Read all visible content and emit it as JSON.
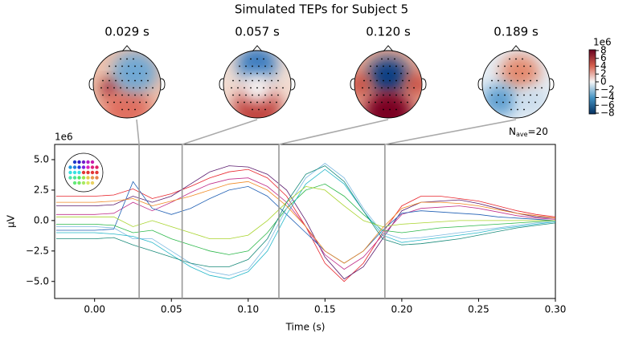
{
  "chart_data": {
    "type": "line",
    "title": "Simulated TEPs for Subject 5",
    "xlabel": "Time (s)",
    "ylabel": "µV",
    "y_offset_label": "1e6",
    "nave": {
      "symbol": "N",
      "subscript": "ave",
      "text": "=20"
    },
    "xlim": [
      -0.026,
      0.3
    ],
    "ylim": [
      -6.4,
      6.25
    ],
    "xticks": [
      {
        "value": 0,
        "label": "0.00"
      },
      {
        "value": 0.05,
        "label": "0.05"
      },
      {
        "value": 0.1,
        "label": "0.10"
      },
      {
        "value": 0.15,
        "label": "0.15"
      },
      {
        "value": 0.2,
        "label": "0.20"
      },
      {
        "value": 0.25,
        "label": "0.25"
      },
      {
        "value": 0.3,
        "label": "0.30"
      }
    ],
    "yticks": [
      {
        "value": -5,
        "label": "−5.0"
      },
      {
        "value": -2.5,
        "label": "−2.5"
      },
      {
        "value": 0,
        "label": "0.0"
      },
      {
        "value": 2.5,
        "label": "2.5"
      },
      {
        "value": 5,
        "label": "5.0"
      }
    ],
    "topomaps": [
      {
        "title": "0.029 s",
        "time": 0.029
      },
      {
        "title": "0.057 s",
        "time": 0.057
      },
      {
        "title": "0.120 s",
        "time": 0.12
      },
      {
        "title": "0.189 s",
        "time": 0.189
      }
    ],
    "colorbar": {
      "offset_label": "1e6",
      "lim": [
        -8.2,
        8.2
      ],
      "ticks": [
        8,
        6,
        4,
        2,
        0,
        {
          "value": -2,
          "label": "−2"
        },
        {
          "value": -4,
          "label": "−4"
        },
        {
          "value": -6,
          "label": "−6"
        },
        {
          "value": -8,
          "label": "−8"
        }
      ]
    },
    "x": [
      -0.025,
      -0.0125,
      0,
      0.0125,
      0.025,
      0.0375,
      0.05,
      0.0625,
      0.075,
      0.0875,
      0.1,
      0.1125,
      0.125,
      0.1375,
      0.15,
      0.1625,
      0.175,
      0.1875,
      0.2,
      0.2125,
      0.225,
      0.2375,
      0.25,
      0.2625,
      0.275,
      0.2875,
      0.3
    ],
    "series": [
      {
        "color": "#e8242c",
        "values": [
          2.0,
          2.0,
          2.0,
          2.1,
          2.6,
          1.8,
          2.2,
          2.8,
          3.5,
          4.0,
          4.2,
          3.5,
          2.0,
          -0.5,
          -3.5,
          -5.0,
          -3.5,
          -1.0,
          1.2,
          2.0,
          2.0,
          1.8,
          1.6,
          1.2,
          0.8,
          0.5,
          0.3
        ]
      },
      {
        "color": "#5a1a6e",
        "values": [
          1.2,
          1.2,
          1.2,
          1.3,
          2.0,
          1.5,
          2.0,
          3.0,
          4.0,
          4.5,
          4.4,
          3.8,
          2.5,
          0,
          -3.0,
          -4.8,
          -3.8,
          -1.5,
          0.8,
          1.5,
          1.6,
          1.7,
          1.4,
          1.0,
          0.6,
          0.3,
          0.2
        ]
      },
      {
        "color": "#c0308c",
        "values": [
          0.5,
          0.5,
          0.5,
          0.6,
          1.5,
          0.8,
          1.5,
          2.3,
          3.0,
          3.4,
          3.5,
          2.8,
          1.5,
          -0.5,
          -2.8,
          -4.0,
          -3.0,
          -1.2,
          0.5,
          1.0,
          1.1,
          1.2,
          1.0,
          0.7,
          0.4,
          0.2,
          0.1
        ]
      },
      {
        "color": "#1f5fb4",
        "values": [
          -0.8,
          -0.8,
          -0.8,
          -0.7,
          3.2,
          1.0,
          0.5,
          1.0,
          1.8,
          2.5,
          2.8,
          2.0,
          0.5,
          -1.0,
          -2.5,
          -3.5,
          -2.5,
          -0.8,
          0.6,
          0.8,
          0.7,
          0.6,
          0.5,
          0.3,
          0.2,
          0.1,
          0.0
        ]
      },
      {
        "color": "#2cb84a",
        "values": [
          -0.3,
          -0.3,
          -0.3,
          -0.4,
          -1.0,
          -0.8,
          -1.5,
          -2.0,
          -2.5,
          -2.8,
          -2.5,
          -1.0,
          1.0,
          2.5,
          3.0,
          2.0,
          0.5,
          -0.8,
          -1.0,
          -0.8,
          -0.6,
          -0.5,
          -0.4,
          -0.3,
          -0.2,
          -0.1,
          0
        ]
      },
      {
        "color": "#7ab8e0",
        "values": [
          -0.5,
          -0.5,
          -0.5,
          -0.6,
          -1.5,
          -1.5,
          -2.5,
          -3.5,
          -4.2,
          -4.5,
          -4.0,
          -2.0,
          1.0,
          3.5,
          4.7,
          3.5,
          1.0,
          -1.0,
          -1.5,
          -1.4,
          -1.2,
          -1.0,
          -0.8,
          -0.6,
          -0.4,
          -0.2,
          -0.1
        ]
      },
      {
        "color": "#22b6c8",
        "values": [
          -1.0,
          -1.0,
          -1.0,
          -1.1,
          -1.3,
          -1.8,
          -2.8,
          -3.8,
          -4.5,
          -4.8,
          -4.2,
          -2.5,
          0.5,
          3.0,
          4.2,
          3.0,
          0.8,
          -1.2,
          -1.8,
          -1.6,
          -1.4,
          -1.2,
          -1.0,
          -0.7,
          -0.5,
          -0.3,
          -0.1
        ]
      },
      {
        "color": "#a8d42c",
        "values": [
          0.3,
          0.3,
          0.3,
          0.3,
          -0.5,
          0.0,
          -0.5,
          -1.0,
          -1.5,
          -1.5,
          -1.2,
          0.0,
          1.5,
          2.8,
          2.5,
          1.2,
          0.0,
          -0.5,
          -0.3,
          -0.2,
          -0.1,
          0,
          0,
          0,
          0,
          0,
          0
        ]
      },
      {
        "color": "#f08a24",
        "values": [
          1.5,
          1.5,
          1.5,
          1.6,
          1.8,
          1.2,
          1.6,
          2.0,
          2.5,
          3.0,
          3.2,
          2.5,
          1.2,
          -0.5,
          -2.5,
          -3.5,
          -2.5,
          -0.6,
          1.0,
          1.5,
          1.5,
          1.4,
          1.2,
          0.9,
          0.6,
          0.4,
          0.2
        ]
      },
      {
        "color": "#188a7a",
        "values": [
          -1.5,
          -1.5,
          -1.5,
          -1.4,
          -2.0,
          -2.5,
          -3.0,
          -3.5,
          -3.8,
          -3.8,
          -3.2,
          -1.5,
          1.5,
          3.8,
          4.5,
          3.2,
          0.8,
          -1.5,
          -2.0,
          -1.9,
          -1.7,
          -1.5,
          -1.2,
          -0.9,
          -0.6,
          -0.4,
          -0.2
        ]
      }
    ]
  }
}
